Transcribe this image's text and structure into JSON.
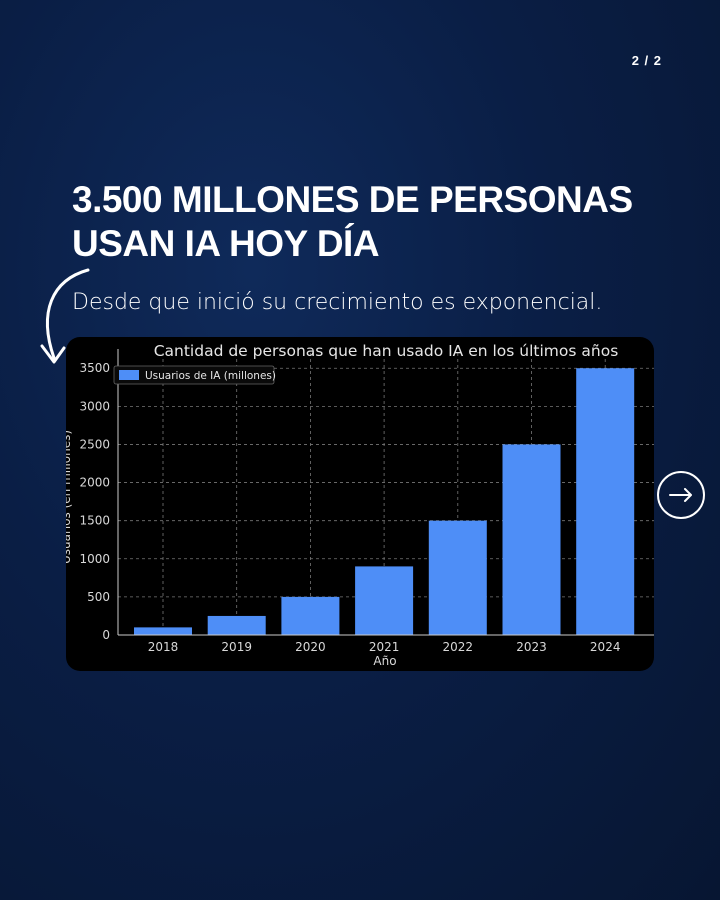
{
  "page_indicator": "2 / 2",
  "headline_line1": "3.500 MILLONES DE PERSONAS",
  "headline_line2": "USAN IA HOY DÍA",
  "subheadline": "Desde que inició su crecimiento es exponencial.",
  "icons": {
    "decor": "curved-arrow-icon",
    "nav": "arrow-right-icon"
  },
  "colors": {
    "bar": "#4e8ef7",
    "background": "#0a1e45"
  },
  "chart_data": {
    "type": "bar",
    "title": "Cantidad de personas que han usado IA en los últimos años",
    "xlabel": "Año",
    "ylabel": "Usuarios (en millones)",
    "categories": [
      "2018",
      "2019",
      "2020",
      "2021",
      "2022",
      "2023",
      "2024"
    ],
    "series": [
      {
        "name": "Usuarios de IA (millones)",
        "values": [
          100,
          250,
          500,
          900,
          1500,
          2500,
          3500
        ]
      }
    ],
    "yticks": [
      0,
      500,
      1000,
      1500,
      2000,
      2500,
      3000,
      3500
    ],
    "ylim": [
      0,
      3700
    ],
    "grid": true,
    "legend_position": "top-left"
  }
}
